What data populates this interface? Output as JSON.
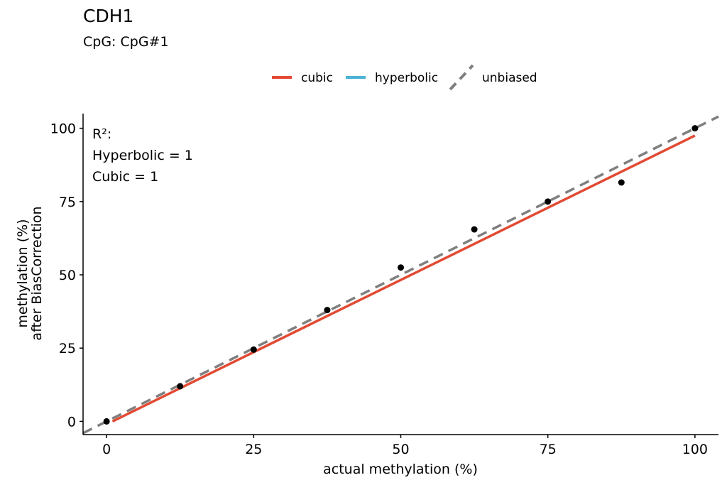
{
  "chart_data": {
    "type": "scatter",
    "title": "CDH1",
    "subtitle": "CpG: CpG#1",
    "xlabel": "actual methylation (%)",
    "ylabel_lines": [
      "methylation (%)",
      "after BiasCorrection"
    ],
    "xlim": [
      -4,
      104
    ],
    "ylim": [
      -4.5,
      105
    ],
    "x_ticks": [
      0,
      25,
      50,
      75,
      100
    ],
    "y_ticks": [
      0,
      25,
      50,
      75,
      100
    ],
    "grid": false,
    "legend_position": "top",
    "legend": [
      {
        "name": "cubic",
        "color": "#E24A33",
        "style": "solid"
      },
      {
        "name": "hyperbolic",
        "color": "#4AB3D6",
        "style": "solid"
      },
      {
        "name": "unbiased",
        "color": "#7F7F7F",
        "style": "dashed"
      }
    ],
    "annotation_lines": [
      "R²:",
      "Hyperbolic = 1",
      "Cubic = 1"
    ],
    "points": {
      "x": [
        0,
        12.5,
        25,
        37.5,
        50,
        62.5,
        75,
        87.5,
        100
      ],
      "y": [
        0,
        12,
        24.5,
        38,
        52.5,
        65.5,
        75,
        81.5,
        100
      ]
    },
    "series": [
      {
        "name": "cubic",
        "x": [
          1,
          100
        ],
        "y": [
          0,
          97.5
        ]
      },
      {
        "name": "unbiased",
        "x": [
          -4,
          104
        ],
        "y": [
          -4,
          104
        ]
      }
    ]
  }
}
